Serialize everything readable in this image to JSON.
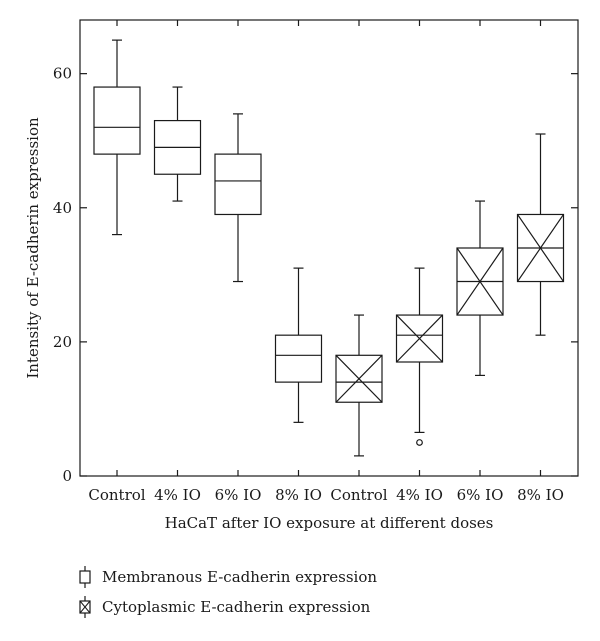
{
  "chart_data": {
    "type": "boxplot",
    "xlabel": "HaCaT after IO exposure at different doses",
    "ylabel": "Intensity of E-cadherin expression",
    "ylim": [
      0,
      68
    ],
    "yticks": [
      0,
      20,
      40,
      60
    ],
    "categories": [
      "Control",
      "4% IO",
      "6% IO",
      "8% IO",
      "Control",
      "4% IO",
      "6% IO",
      "8% IO"
    ],
    "series": [
      {
        "name": "Membranous E-cadherin expression",
        "marker": "plain",
        "boxes": [
          {
            "category_index": 0,
            "min": 36,
            "q1": 48,
            "median": 52,
            "q3": 58,
            "max": 65
          },
          {
            "category_index": 1,
            "min": 41,
            "q1": 45,
            "median": 49,
            "q3": 53,
            "max": 58
          },
          {
            "category_index": 2,
            "min": 29,
            "q1": 39,
            "median": 44,
            "q3": 48,
            "max": 54
          },
          {
            "category_index": 3,
            "min": 8,
            "q1": 14,
            "median": 18,
            "q3": 21,
            "max": 31
          }
        ]
      },
      {
        "name": "Cytoplasmic E-cadherin expression",
        "marker": "cross",
        "boxes": [
          {
            "category_index": 4,
            "min": 3,
            "q1": 11,
            "median": 14,
            "q3": 18,
            "max": 24
          },
          {
            "category_index": 5,
            "min": 6.5,
            "q1": 17,
            "median": 21,
            "q3": 24,
            "max": 31,
            "outliers": [
              5
            ]
          },
          {
            "category_index": 6,
            "min": 15,
            "q1": 24,
            "median": 29,
            "q3": 34,
            "max": 41
          },
          {
            "category_index": 7,
            "min": 21,
            "q1": 29,
            "median": 34,
            "q3": 39,
            "max": 51
          }
        ]
      }
    ],
    "legend": {
      "position": "bottom-left",
      "items": [
        "Membranous E-cadherin expression",
        "Cytoplasmic E-cadherin expression"
      ]
    },
    "grid": false
  }
}
